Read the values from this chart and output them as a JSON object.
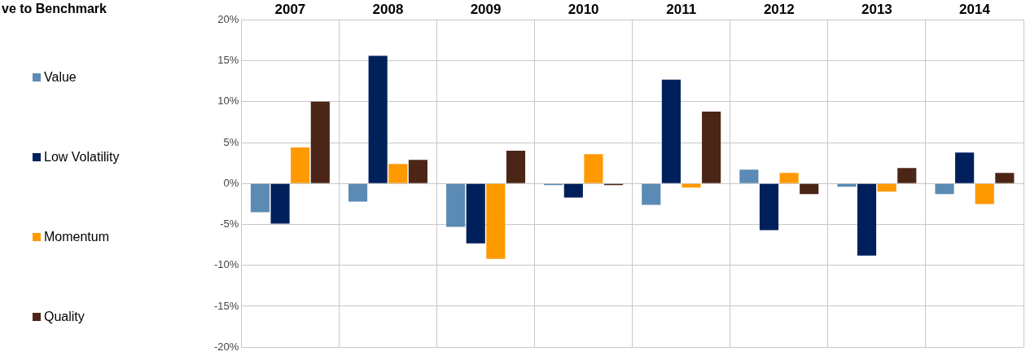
{
  "chart_data": {
    "type": "bar",
    "title": "ve to Benchmark",
    "categories": [
      "2007",
      "2008",
      "2009",
      "2010",
      "2011",
      "2012",
      "2013",
      "2014"
    ],
    "series": [
      {
        "name": "Value",
        "color": "#5b8bb4",
        "values": [
          -3.5,
          -2.2,
          -5.3,
          -0.1,
          -2.6,
          1.7,
          -0.4,
          -1.3
        ]
      },
      {
        "name": "Low Volatility",
        "color": "#00205b",
        "values": [
          -4.9,
          15.6,
          -7.3,
          -1.7,
          12.7,
          -5.7,
          -8.8,
          3.8
        ]
      },
      {
        "name": "Momentum",
        "color": "#ff9900",
        "values": [
          4.4,
          2.4,
          -9.2,
          3.6,
          -0.5,
          1.3,
          -1.0,
          -2.5
        ]
      },
      {
        "name": "Quality",
        "color": "#4b2515",
        "values": [
          10.0,
          2.9,
          4.0,
          -0.1,
          8.8,
          -1.3,
          1.9,
          1.3
        ]
      }
    ],
    "ylim": [
      -20,
      20
    ],
    "yticks": [
      {
        "value": -20,
        "label": "-20%"
      },
      {
        "value": -15,
        "label": "-15%"
      },
      {
        "value": -10,
        "label": "-10%"
      },
      {
        "value": -5,
        "label": "-5%"
      },
      {
        "value": 0,
        "label": "0%"
      },
      {
        "value": 5,
        "label": "5%"
      },
      {
        "value": 10,
        "label": "10%"
      },
      {
        "value": 15,
        "label": "15%"
      },
      {
        "value": 20,
        "label": "20%"
      }
    ],
    "grid": true,
    "legend": "left"
  }
}
